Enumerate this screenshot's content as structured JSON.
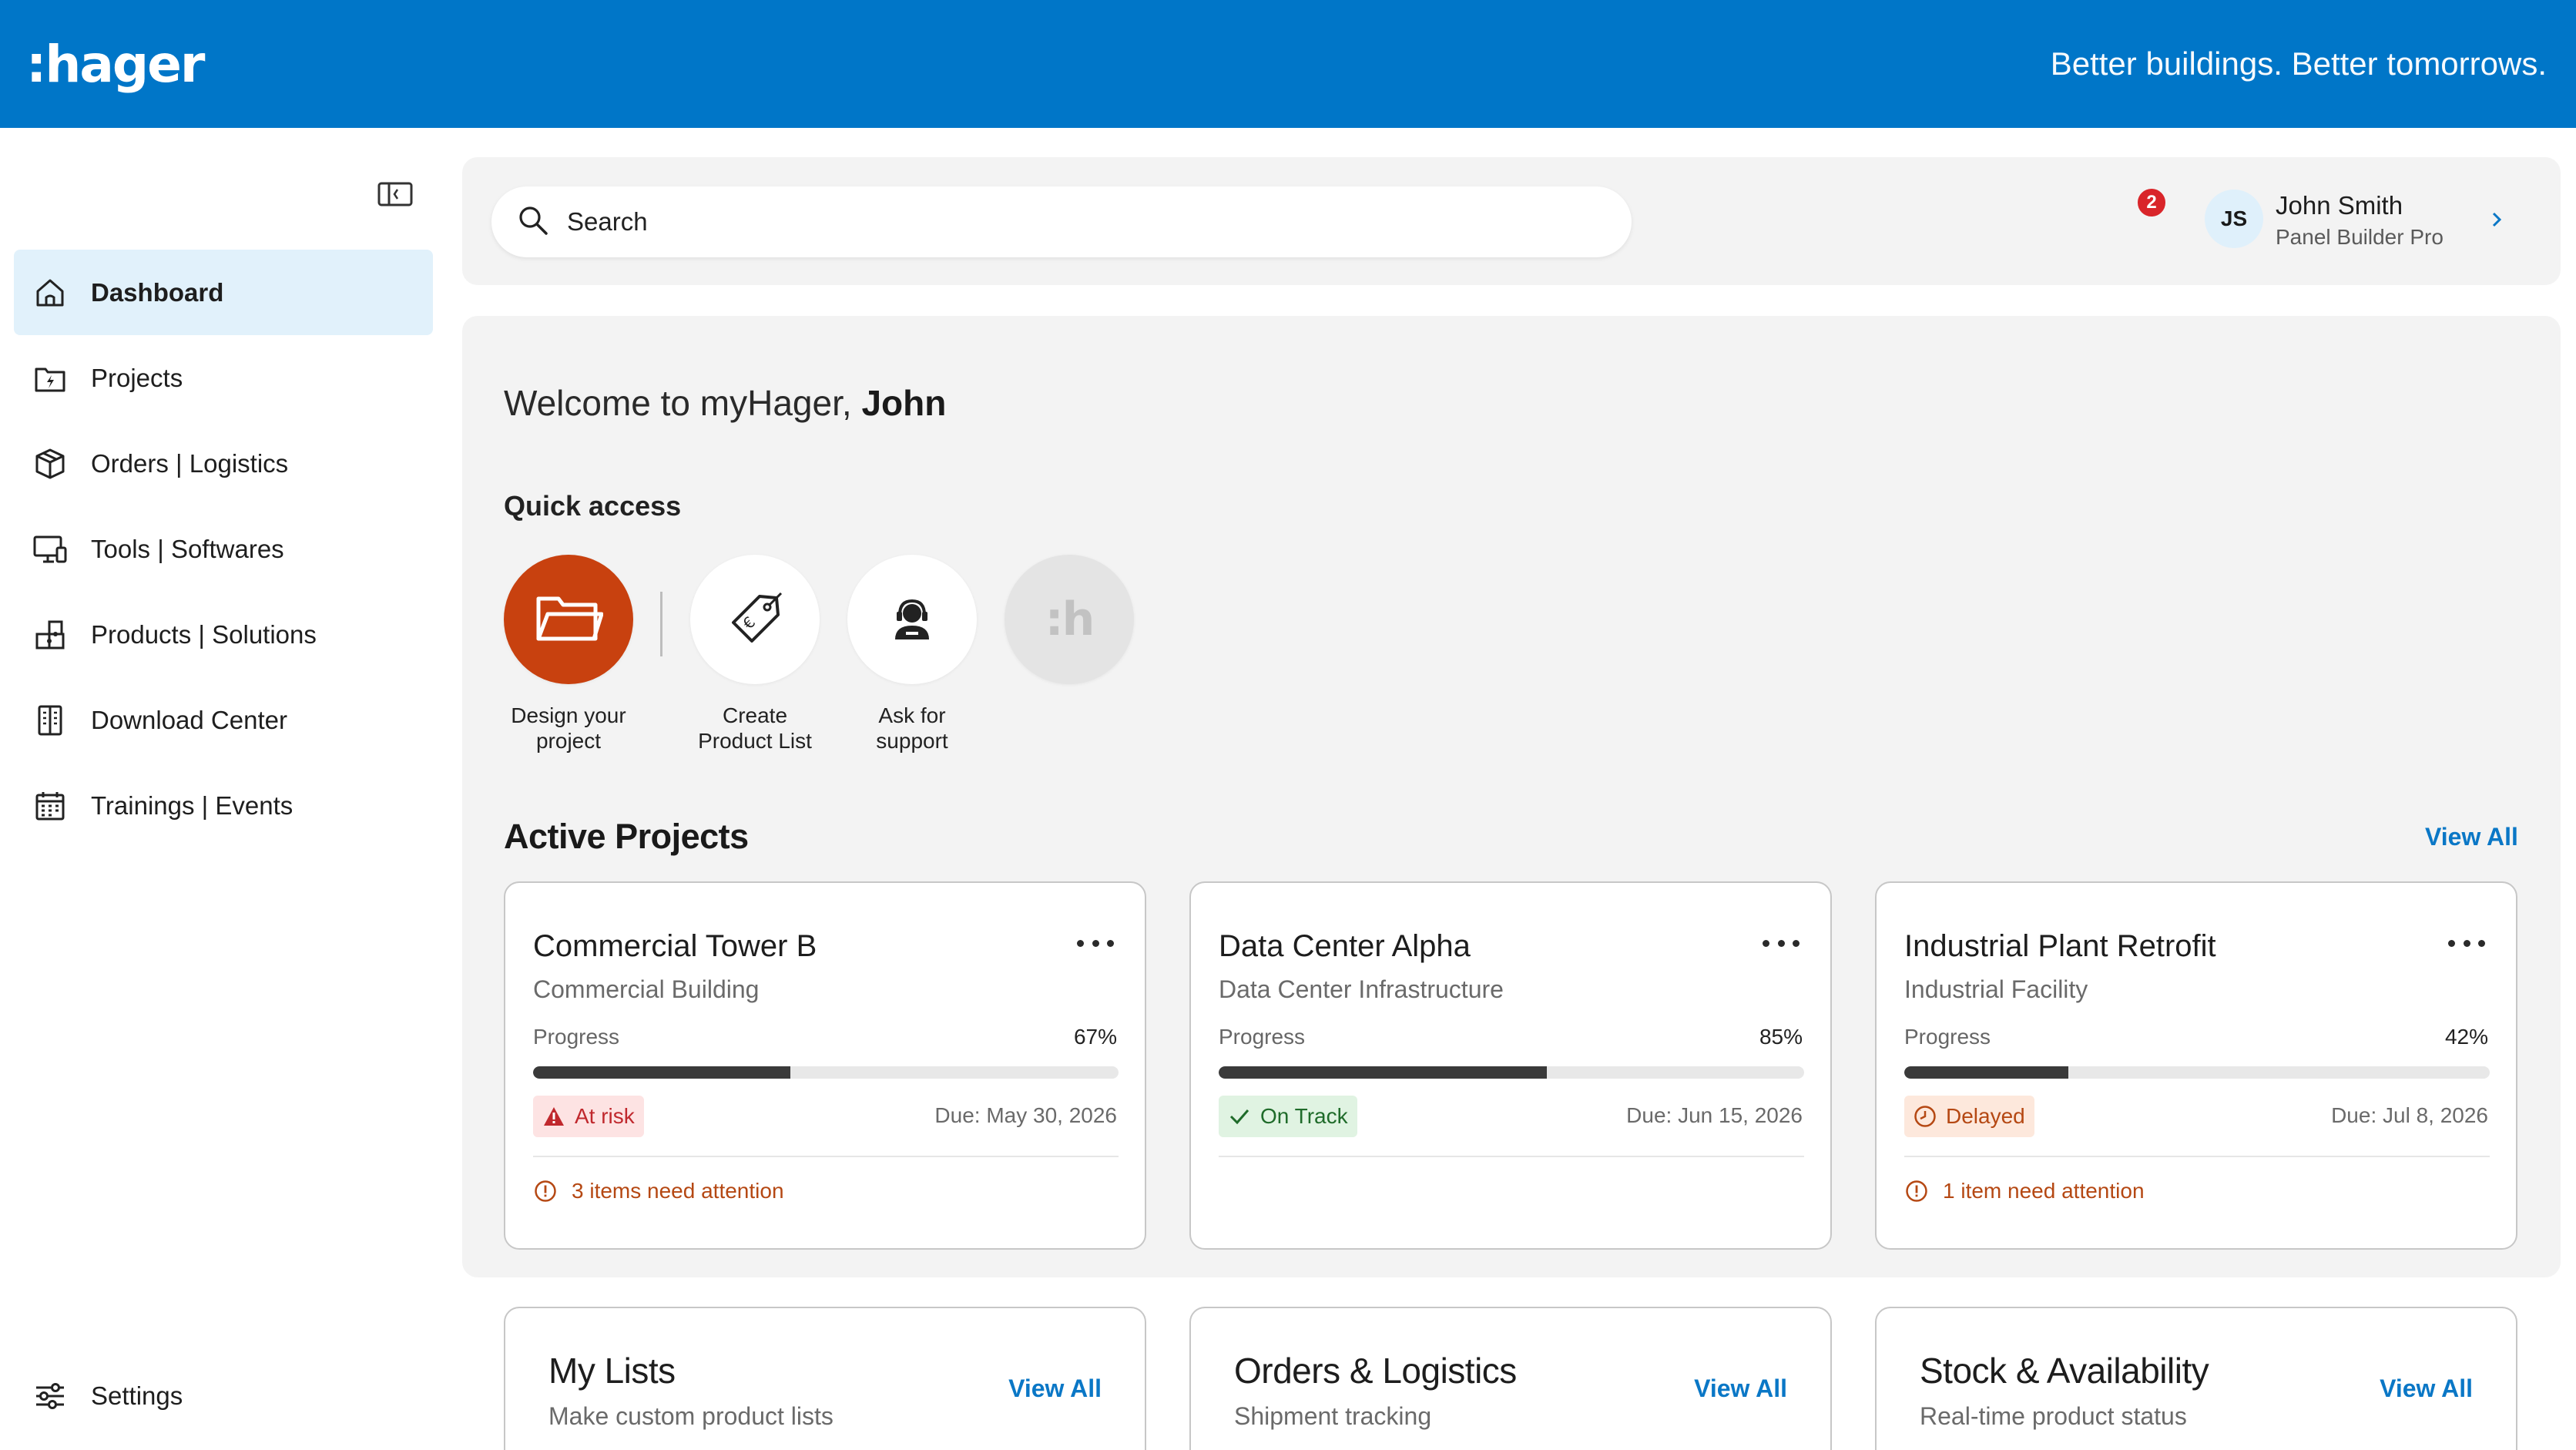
{
  "header": {
    "logo_text": ":hager",
    "tagline": "Better buildings. Better tomorrows.",
    "brand_color": "#0076c8"
  },
  "sidebar": {
    "collapse_icon": "sidebar-collapse-icon",
    "items": [
      {
        "label": "Dashboard",
        "icon": "home-icon",
        "active": true
      },
      {
        "label": "Projects",
        "icon": "project-folder-icon",
        "active": false
      },
      {
        "label": "Orders | Logistics",
        "icon": "package-box-icon",
        "active": false
      },
      {
        "label": "Tools | Softwares",
        "icon": "monitor-icon",
        "active": false
      },
      {
        "label": "Products | Solutions",
        "icon": "puzzle-icon",
        "active": false
      },
      {
        "label": "Download Center",
        "icon": "document-download-icon",
        "active": false
      },
      {
        "label": "Trainings | Events",
        "icon": "calendar-icon",
        "active": false
      }
    ],
    "settings": {
      "label": "Settings",
      "icon": "sliders-icon"
    }
  },
  "topbar": {
    "search": {
      "placeholder": "Search",
      "icon": "search-icon"
    },
    "notifications": {
      "icon": "bell-icon",
      "count": "2"
    },
    "user": {
      "initials": "JS",
      "name": "John Smith",
      "role": "Panel Builder Pro",
      "chevron_icon": "chevron-right-icon"
    }
  },
  "welcome": {
    "prefix": "Welcome to myHager, ",
    "name": "John"
  },
  "quick_access": {
    "title": "Quick access",
    "items": [
      {
        "label_line1": "Design your",
        "label_line2": "project",
        "icon": "folder-open-icon"
      },
      {
        "label_line1": "Create",
        "label_line2": "Product List",
        "icon": "price-tag-icon"
      },
      {
        "label_line1": "Ask for",
        "label_line2": "support",
        "icon": "support-agent-icon"
      },
      {
        "mark": ":h",
        "icon": "hager-mark-icon"
      }
    ]
  },
  "active_projects": {
    "title": "Active Projects",
    "view_all": "View All",
    "projects": [
      {
        "name": "Commercial Tower B",
        "type": "Commercial Building",
        "progress_label": "Progress",
        "progress_text": "67%",
        "progress_bar_fraction": 0.44,
        "status": "At risk",
        "status_icon": "warning-triangle-icon",
        "due": "Due: May 30, 2026",
        "attention": "3 items need attention"
      },
      {
        "name": "Data Center Alpha",
        "type": "Data Center Infrastructure",
        "progress_label": "Progress",
        "progress_text": "85%",
        "progress_bar_fraction": 0.56,
        "status": "On Track",
        "status_icon": "checkmark-icon",
        "due": "Due: Jun 15, 2026",
        "attention": ""
      },
      {
        "name": "Industrial Plant Retrofit",
        "type": "Industrial Facility",
        "progress_label": "Progress",
        "progress_text": "42%",
        "progress_bar_fraction": 0.28,
        "status": "Delayed",
        "status_icon": "clock-icon",
        "due": "Due: Jul 8, 2026",
        "attention": "1 item need attention"
      }
    ]
  },
  "bottom_cards": [
    {
      "title": "My Lists",
      "subtitle": "Make custom product lists",
      "view_all": "View All"
    },
    {
      "title": "Orders & Logistics",
      "subtitle": "Shipment tracking",
      "view_all": "View All"
    },
    {
      "title": "Stock & Availability",
      "subtitle": "Real-time product status",
      "view_all": "View All"
    }
  ],
  "colors": {
    "accent_blue": "#0a77c6",
    "design_orange": "#c8410f",
    "risk_red": "#c0282d",
    "ok_green": "#1f6b2a",
    "delay_orange": "#b54813"
  }
}
